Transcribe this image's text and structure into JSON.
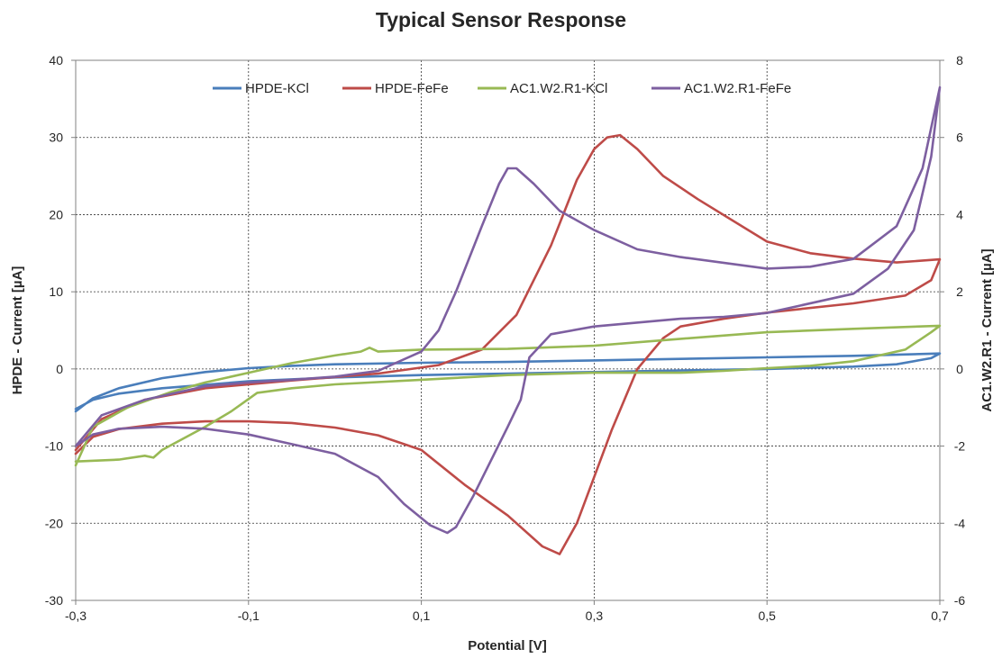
{
  "chart_data": {
    "type": "line",
    "title": "Typical Sensor Response",
    "xlabel": "Potential [V]",
    "ylabel": "HPDE - Current [µA]",
    "y2label": "AC1.W2.R1 - Current [µA]",
    "xlim": [
      -0.3,
      0.7
    ],
    "ylim": [
      -30,
      40
    ],
    "y2lim": [
      -6,
      8
    ],
    "xticks": [
      -0.3,
      -0.1,
      0.1,
      0.3,
      0.5,
      0.7
    ],
    "xtick_labels": [
      "-0,3",
      "-0,1",
      "0,1",
      "0,3",
      "0,5",
      "0,7"
    ],
    "yticks": [
      -30,
      -20,
      -10,
      0,
      10,
      20,
      30,
      40
    ],
    "y2ticks": [
      -6,
      -4,
      -2,
      0,
      2,
      4,
      6,
      8
    ],
    "grid": true,
    "legend_position": "top",
    "series": [
      {
        "name": "HPDE-KCl",
        "axis": "left",
        "color": "#4a7ebb",
        "points": [
          [
            -0.3,
            -5.5
          ],
          [
            -0.28,
            -3.8
          ],
          [
            -0.25,
            -2.5
          ],
          [
            -0.2,
            -1.2
          ],
          [
            -0.15,
            -0.4
          ],
          [
            -0.1,
            0.1
          ],
          [
            -0.05,
            0.4
          ],
          [
            0.0,
            0.6
          ],
          [
            0.1,
            0.8
          ],
          [
            0.2,
            0.9
          ],
          [
            0.3,
            1.1
          ],
          [
            0.4,
            1.3
          ],
          [
            0.5,
            1.5
          ],
          [
            0.6,
            1.7
          ],
          [
            0.7,
            2.0
          ],
          [
            0.69,
            1.4
          ],
          [
            0.65,
            0.6
          ],
          [
            0.6,
            0.3
          ],
          [
            0.5,
            0.0
          ],
          [
            0.4,
            -0.2
          ],
          [
            0.3,
            -0.4
          ],
          [
            0.2,
            -0.6
          ],
          [
            0.1,
            -0.8
          ],
          [
            0.0,
            -1.1
          ],
          [
            -0.1,
            -1.6
          ],
          [
            -0.2,
            -2.5
          ],
          [
            -0.25,
            -3.2
          ],
          [
            -0.28,
            -4.0
          ],
          [
            -0.3,
            -5.2
          ]
        ]
      },
      {
        "name": "HPDE-FeFe",
        "axis": "left",
        "color": "#be4b48",
        "points": [
          [
            -0.3,
            -10.5
          ],
          [
            -0.27,
            -6.5
          ],
          [
            -0.22,
            -4.0
          ],
          [
            -0.15,
            -2.5
          ],
          [
            -0.05,
            -1.5
          ],
          [
            0.05,
            -0.6
          ],
          [
            0.12,
            0.5
          ],
          [
            0.17,
            2.5
          ],
          [
            0.21,
            7.0
          ],
          [
            0.25,
            16.0
          ],
          [
            0.28,
            24.5
          ],
          [
            0.3,
            28.5
          ],
          [
            0.315,
            30.0
          ],
          [
            0.33,
            30.3
          ],
          [
            0.35,
            28.5
          ],
          [
            0.38,
            25.0
          ],
          [
            0.42,
            22.0
          ],
          [
            0.5,
            16.5
          ],
          [
            0.55,
            15.0
          ],
          [
            0.6,
            14.3
          ],
          [
            0.65,
            13.8
          ],
          [
            0.7,
            14.2
          ],
          [
            0.69,
            11.5
          ],
          [
            0.66,
            9.5
          ],
          [
            0.6,
            8.5
          ],
          [
            0.5,
            7.3
          ],
          [
            0.45,
            6.5
          ],
          [
            0.4,
            5.5
          ],
          [
            0.38,
            4.0
          ],
          [
            0.35,
            0.0
          ],
          [
            0.32,
            -8.0
          ],
          [
            0.3,
            -14.0
          ],
          [
            0.28,
            -20.0
          ],
          [
            0.26,
            -24.0
          ],
          [
            0.24,
            -23.0
          ],
          [
            0.2,
            -19.0
          ],
          [
            0.15,
            -15.0
          ],
          [
            0.1,
            -10.5
          ],
          [
            0.05,
            -8.6
          ],
          [
            0.0,
            -7.6
          ],
          [
            -0.05,
            -7.0
          ],
          [
            -0.1,
            -6.8
          ],
          [
            -0.15,
            -6.8
          ],
          [
            -0.2,
            -7.1
          ],
          [
            -0.25,
            -7.8
          ],
          [
            -0.28,
            -8.8
          ],
          [
            -0.3,
            -11.0
          ]
        ]
      },
      {
        "name": "AC1.W2.R1-KCl",
        "axis": "right",
        "color": "#98b954",
        "points": [
          [
            -0.3,
            -2.5
          ],
          [
            -0.28,
            -1.5
          ],
          [
            -0.24,
            -1.0
          ],
          [
            -0.19,
            -0.6
          ],
          [
            -0.15,
            -0.35
          ],
          [
            -0.1,
            -0.1
          ],
          [
            -0.05,
            0.15
          ],
          [
            0.0,
            0.35
          ],
          [
            0.03,
            0.45
          ],
          [
            0.04,
            0.55
          ],
          [
            0.05,
            0.45
          ],
          [
            0.1,
            0.5
          ],
          [
            0.2,
            0.52
          ],
          [
            0.3,
            0.6
          ],
          [
            0.4,
            0.78
          ],
          [
            0.5,
            0.95
          ],
          [
            0.6,
            1.04
          ],
          [
            0.7,
            1.12
          ],
          [
            0.69,
            0.95
          ],
          [
            0.66,
            0.5
          ],
          [
            0.6,
            0.2
          ],
          [
            0.55,
            0.08
          ],
          [
            0.5,
            0.02
          ],
          [
            0.45,
            -0.05
          ],
          [
            0.4,
            -0.1
          ],
          [
            0.3,
            -0.1
          ],
          [
            0.2,
            -0.16
          ],
          [
            0.1,
            -0.28
          ],
          [
            0.0,
            -0.4
          ],
          [
            -0.05,
            -0.5
          ],
          [
            -0.09,
            -0.62
          ],
          [
            -0.1,
            -0.78
          ],
          [
            -0.12,
            -1.1
          ],
          [
            -0.15,
            -1.5
          ],
          [
            -0.2,
            -2.1
          ],
          [
            -0.21,
            -2.3
          ],
          [
            -0.22,
            -2.25
          ],
          [
            -0.25,
            -2.35
          ],
          [
            -0.3,
            -2.4
          ]
        ]
      },
      {
        "name": "AC1.W2.R1-FeFe",
        "axis": "right",
        "color": "#7d5fa0",
        "points": [
          [
            -0.3,
            -2.0
          ],
          [
            -0.27,
            -1.2
          ],
          [
            -0.22,
            -0.8
          ],
          [
            -0.15,
            -0.45
          ],
          [
            -0.1,
            -0.35
          ],
          [
            -0.05,
            -0.28
          ],
          [
            0.0,
            -0.2
          ],
          [
            0.05,
            -0.05
          ],
          [
            0.1,
            0.45
          ],
          [
            0.12,
            1.0
          ],
          [
            0.14,
            2.0
          ],
          [
            0.17,
            3.7
          ],
          [
            0.19,
            4.8
          ],
          [
            0.2,
            5.2
          ],
          [
            0.21,
            5.2
          ],
          [
            0.23,
            4.8
          ],
          [
            0.26,
            4.1
          ],
          [
            0.3,
            3.6
          ],
          [
            0.35,
            3.1
          ],
          [
            0.4,
            2.9
          ],
          [
            0.5,
            2.6
          ],
          [
            0.55,
            2.65
          ],
          [
            0.6,
            2.85
          ],
          [
            0.65,
            3.7
          ],
          [
            0.68,
            5.2
          ],
          [
            0.7,
            7.3
          ],
          [
            0.69,
            5.5
          ],
          [
            0.67,
            3.6
          ],
          [
            0.64,
            2.6
          ],
          [
            0.6,
            1.95
          ],
          [
            0.5,
            1.45
          ],
          [
            0.45,
            1.35
          ],
          [
            0.4,
            1.3
          ],
          [
            0.3,
            1.1
          ],
          [
            0.25,
            0.9
          ],
          [
            0.225,
            0.3
          ],
          [
            0.215,
            -0.8
          ],
          [
            0.2,
            -1.5
          ],
          [
            0.18,
            -2.4
          ],
          [
            0.16,
            -3.3
          ],
          [
            0.14,
            -4.1
          ],
          [
            0.13,
            -4.25
          ],
          [
            0.11,
            -4.05
          ],
          [
            0.08,
            -3.5
          ],
          [
            0.05,
            -2.8
          ],
          [
            0.0,
            -2.2
          ],
          [
            -0.05,
            -1.95
          ],
          [
            -0.1,
            -1.7
          ],
          [
            -0.15,
            -1.55
          ],
          [
            -0.2,
            -1.5
          ],
          [
            -0.25,
            -1.55
          ],
          [
            -0.28,
            -1.7
          ],
          [
            -0.3,
            -2.0
          ]
        ]
      }
    ]
  }
}
